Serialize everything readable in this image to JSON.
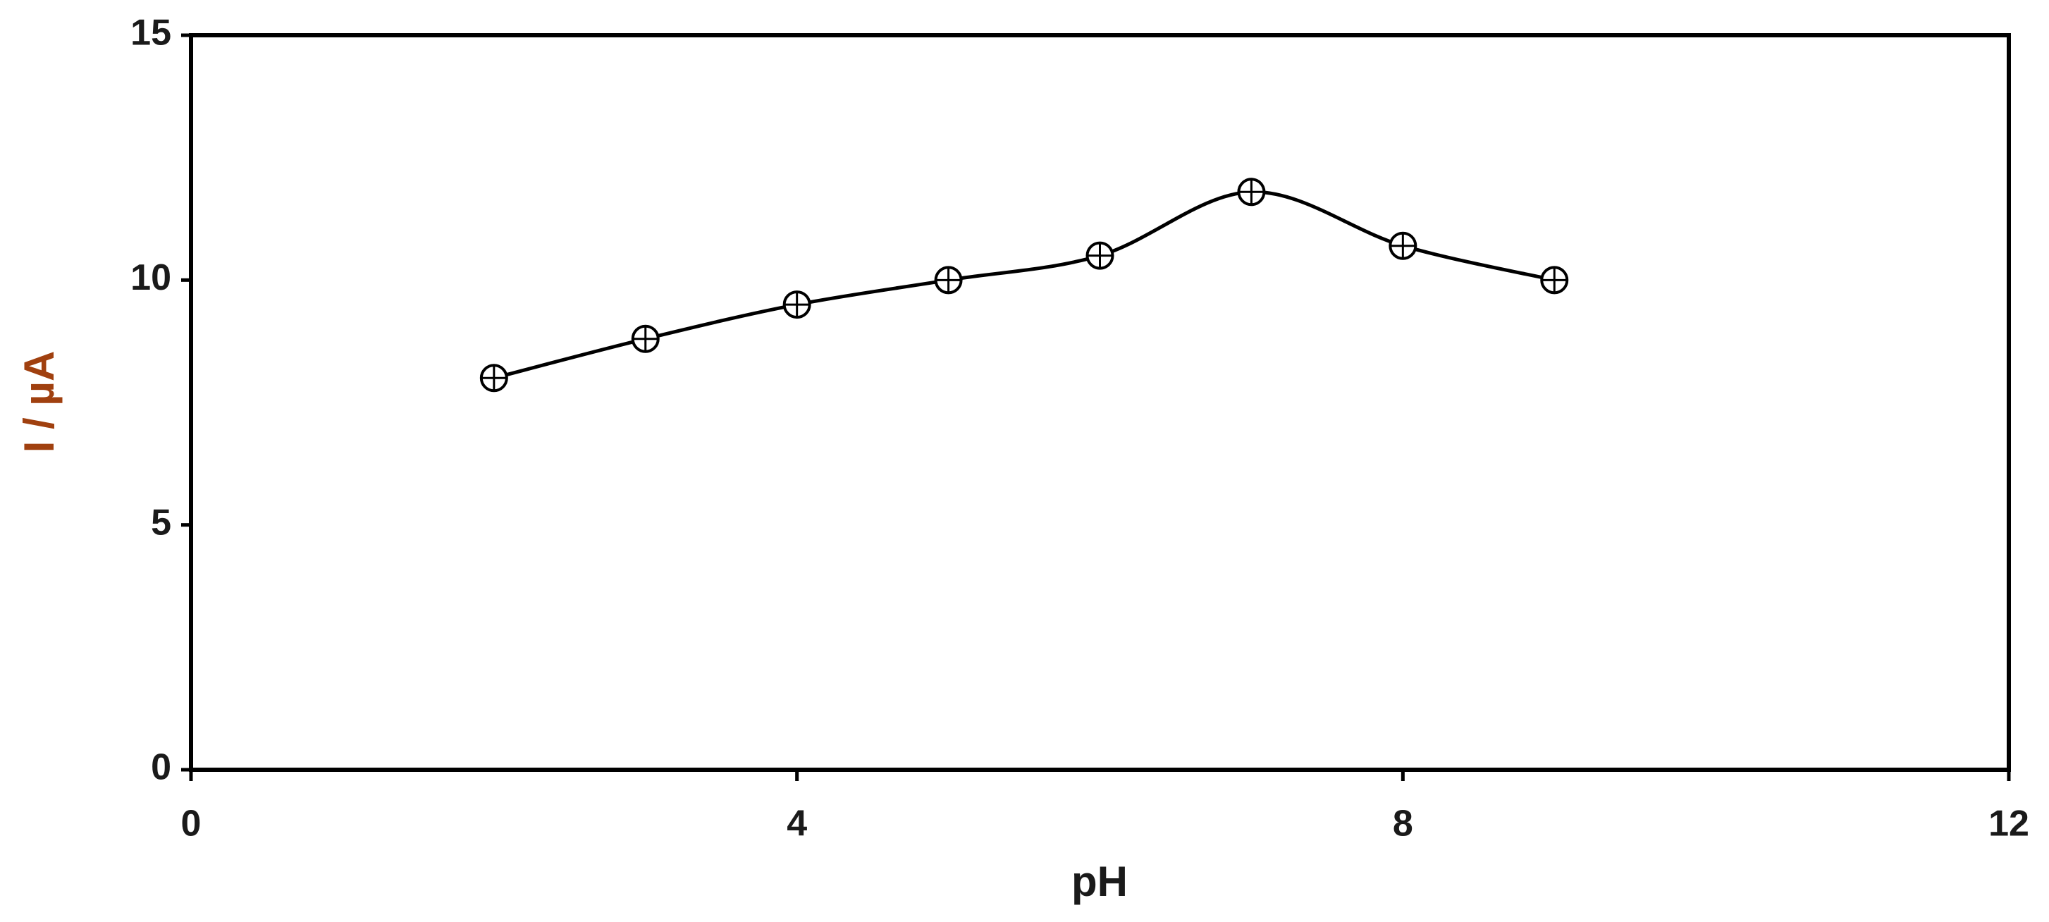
{
  "chart_data": {
    "type": "line",
    "xlabel": "pH",
    "ylabel": "I / µA",
    "x": [
      2,
      3,
      4,
      5,
      6,
      7,
      8,
      9
    ],
    "series": [
      {
        "color": "#000000",
        "values": [
          8.0,
          8.8,
          9.5,
          10.0,
          10.5,
          11.8,
          10.7,
          10.0
        ]
      }
    ],
    "xlim": [
      0,
      12
    ],
    "xticks": [
      0,
      4,
      8,
      12
    ],
    "ylim": [
      0,
      15
    ],
    "yticks": [
      0,
      5,
      10,
      15
    ],
    "grid": false,
    "smooth": true
  }
}
